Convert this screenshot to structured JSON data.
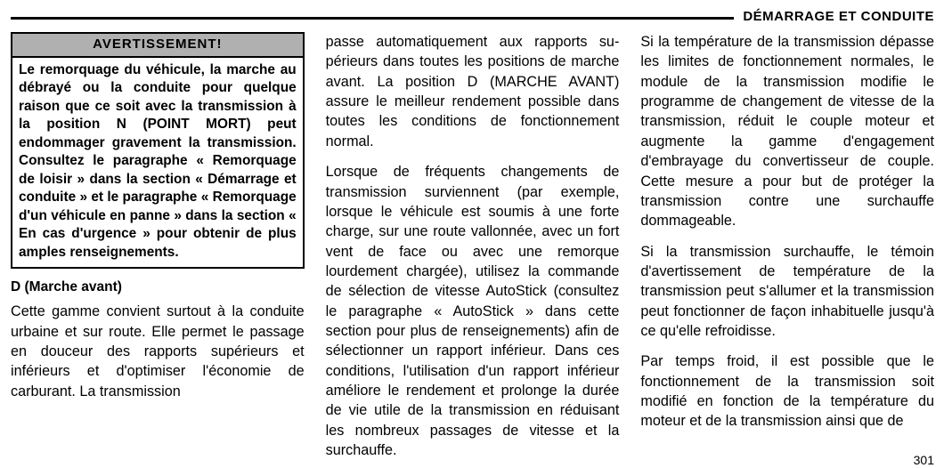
{
  "header": {
    "title": "DÉMARRAGE ET CONDUITE"
  },
  "col1": {
    "warning": {
      "title": "AVERTISSEMENT!",
      "body": "Le remorquage du véhicule, la marche au débrayé ou la conduite pour quelque raison que ce soit avec la transmission à la position N (POINT MORT) peut endommager gravement la transmission. Consul­tez le paragraphe « Remorquage de loisir » dans la section « Démarrage et conduite » et le paragraphe « Re­morquage d'un véhicule en panne » dans la section « En cas d'urgence » pour obtenir de plus amples rensei­gnements."
    },
    "subhead": "D (Marche avant)",
    "p1": "Cette gamme convient surtout à la conduite urbaine et sur route. Elle permet le passage en douceur des rapports su­périeurs et inférieurs et d'optimiser l'éco­nomie de carburant. La transmission"
  },
  "col2": {
    "p1": "passe automatiquement aux rapports su­périeurs dans toutes les positions de marche avant. La position D (MARCHE AVANT) assure le meilleur rendement pos­sible dans toutes les conditions de fonc­tionnement normal.",
    "p2": "Lorsque de fréquents changements de transmission surviennent (par exemple, lorsque le véhicule est soumis à une forte charge, sur une route vallonnée, avec un fort vent de face ou avec une remorque lourdement chargée), utilisez la com­mande de sélection de vitesse AutoStick (consultez le paragraphe « AutoStick » dans cette section pour plus de rensei­gnements) afin de sélectionner un rapport inférieur. Dans ces conditions, l'utilisation d'un rapport inférieur améliore le rende­ment et prolonge la durée de vie utile de la transmission en réduisant les nombreux passages de vitesse et la surchauffe."
  },
  "col3": {
    "p1": "Si la température de la transmission dé­passe les limites de fonctionnement nor­males, le module de la transmission mo­difie le programme de changement de vitesse de la transmission, réduit le couple moteur et augmente la gamme d'engage­ment d'embrayage du convertisseur de couple. Cette mesure a pour but de pro­téger la transmission contre une sur­chauffe dommageable.",
    "p2": "Si la transmission surchauffe, le témoin d'avertissement de température de la transmission peut s'allumer et la transmis­sion peut fonctionner de façon inhabi­tuelle jusqu'à ce qu'elle refroidisse.",
    "p3": "Par temps froid, il est possible que le fonctionnement de la transmission soit modifié en fonction de la température du moteur et de la transmission ainsi que de"
  },
  "pageNumber": "301"
}
